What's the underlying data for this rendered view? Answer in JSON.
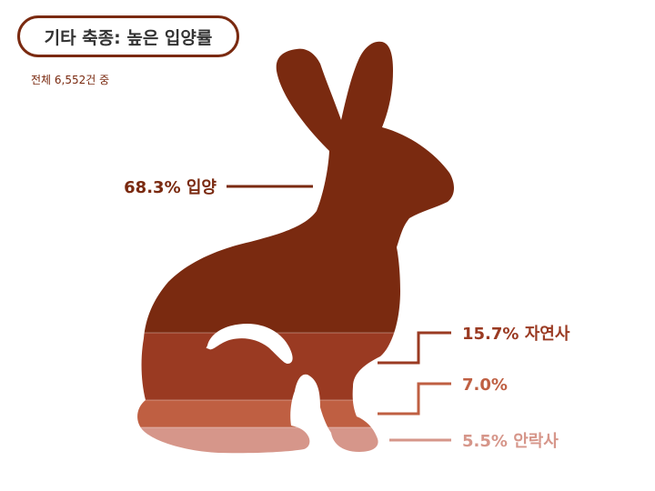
{
  "title": "기타 축종: 높은 입양률",
  "subtitle": "전체 6,552건 중",
  "chart_data": {
    "type": "stacked-proportion",
    "unit": "%",
    "segments": [
      {
        "label": "입양",
        "value": 68.3,
        "display": "68.3% 입양",
        "color": "#7a2a10"
      },
      {
        "label": "자연사",
        "value": 15.7,
        "display": "15.7% 자연사",
        "color": "#9a3a22"
      },
      {
        "label": "",
        "value": 7.0,
        "display": "7.0%",
        "color": "#bf5f42"
      },
      {
        "label": "안락사",
        "value": 5.5,
        "display": "5.5% 안락사",
        "color": "#d6968a"
      }
    ]
  }
}
